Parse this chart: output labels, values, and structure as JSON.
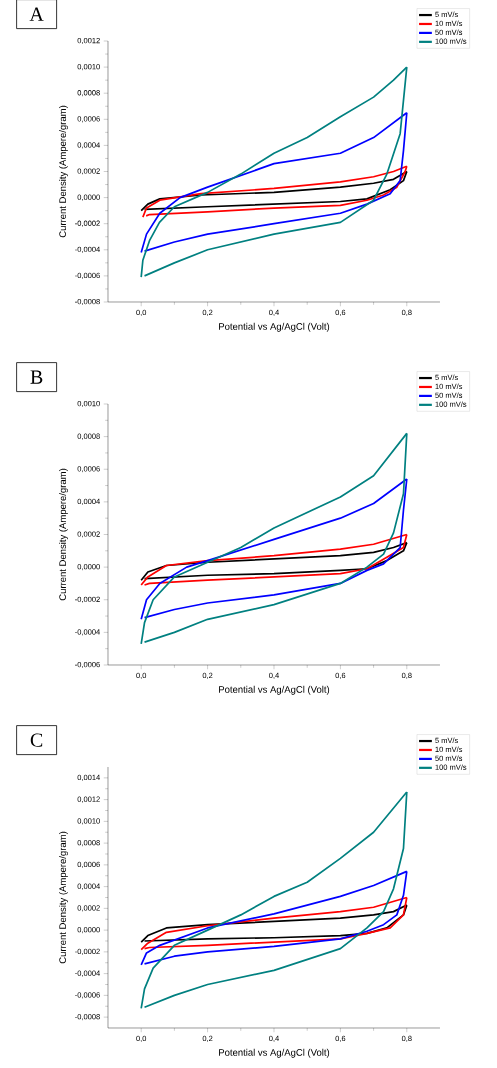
{
  "chart_data": [
    {
      "type": "line",
      "title": "A",
      "xlabel": "Potential vs Ag/AgCl (Volt)",
      "ylabel": "Current Density (Ampere/gram)",
      "legend": "top right",
      "xlim": [
        -0.1,
        0.9
      ],
      "xticks": [
        {
          "value": 0,
          "label": "0,0"
        },
        {
          "value": 0.2,
          "label": "0,2"
        },
        {
          "value": 0.4,
          "label": "0,4"
        },
        {
          "value": 0.6,
          "label": "0,6"
        },
        {
          "value": 0.8,
          "label": "0,8"
        }
      ],
      "ylim": [
        -0.0008,
        0.0012
      ],
      "yticks": [
        {
          "value": -0.0008,
          "label": "-0,0008"
        },
        {
          "value": -0.0006,
          "label": "-0,0006"
        },
        {
          "value": -0.0004,
          "label": "-0,0004"
        },
        {
          "value": -0.0002,
          "label": "-0,0002"
        },
        {
          "value": 0,
          "label": "0,0000"
        },
        {
          "value": 0.0002,
          "label": "0,0002"
        },
        {
          "value": 0.0004,
          "label": "0,0004"
        },
        {
          "value": 0.0006,
          "label": "0,0006"
        },
        {
          "value": 0.0008,
          "label": "0,0008"
        },
        {
          "value": 0.001,
          "label": "0,0010"
        },
        {
          "value": 0.0012,
          "label": "0,0012"
        }
      ],
      "series": [
        {
          "name": "5 mV/s",
          "color": "#000000",
          "x": [
            0,
            0.02,
            0.056,
            0.18,
            0.4,
            0.6,
            0.7,
            0.76,
            0.8
          ],
          "values": [
            -0.0001,
            -5e-05,
            -1e-05,
            2e-05,
            4e-05,
            8e-05,
            0.00011,
            0.00014,
            0.0002
          ]
        },
        {
          "color": "#000000",
          "x": [
            0.01,
            0.2,
            0.4,
            0.6,
            0.68,
            0.75,
            0.79,
            0.8
          ],
          "values": [
            -9e-05,
            -7e-05,
            -5e-05,
            -3e-05,
            -1e-05,
            6e-05,
            0.00013,
            0.0002
          ]
        },
        {
          "name": "10 mV/s",
          "color": "#ff0000",
          "x": [
            0.005,
            0.016,
            0.056,
            0.18,
            0.4,
            0.6,
            0.7,
            0.76,
            0.8
          ],
          "values": [
            -0.00015,
            -8e-05,
            -2e-05,
            3e-05,
            7e-05,
            0.00012,
            0.00016,
            0.0002,
            0.00024
          ]
        },
        {
          "color": "#ff0000",
          "x": [
            0.015,
            0.025,
            0.2,
            0.4,
            0.6,
            0.68,
            0.73,
            0.77,
            0.795,
            0.8
          ],
          "values": [
            -0.00014,
            -0.00013,
            -0.00011,
            -8e-05,
            -6e-05,
            -2e-05,
            2e-05,
            8e-05,
            0.0002,
            0.00024
          ]
        },
        {
          "name": "50 mV/s",
          "color": "#0000ff",
          "x": [
            0,
            0.016,
            0.056,
            0.117,
            0.2,
            0.4,
            0.6,
            0.7,
            0.8
          ],
          "values": [
            -0.00042,
            -0.00028,
            -0.00012,
            0.0,
            8e-05,
            0.00026,
            0.00034,
            0.00046,
            0.00065
          ]
        },
        {
          "color": "#0000ff",
          "x": [
            0.01,
            0.1,
            0.2,
            0.4,
            0.6,
            0.68,
            0.75,
            0.78,
            0.79,
            0.8
          ],
          "values": [
            -0.00041,
            -0.00034,
            -0.00028,
            -0.0002,
            -0.00012,
            -5e-05,
            3e-05,
            0.00013,
            0.00036,
            0.00065
          ]
        },
        {
          "name": "100 mV/s",
          "color": "#008080",
          "x": [
            0,
            0.005,
            0.025,
            0.055,
            0.1,
            0.2,
            0.3,
            0.4,
            0.5,
            0.6,
            0.7,
            0.76,
            0.8
          ],
          "values": [
            -0.00061,
            -0.00048,
            -0.00033,
            -0.00019,
            -7e-05,
            4e-05,
            0.00018,
            0.00034,
            0.00046,
            0.00062,
            0.00077,
            0.0009,
            0.001
          ]
        },
        {
          "color": "#008080",
          "x": [
            0.01,
            0.1,
            0.2,
            0.4,
            0.6,
            0.7,
            0.74,
            0.78,
            0.8
          ],
          "values": [
            -0.0006,
            -0.0005,
            -0.0004,
            -0.00028,
            -0.00019,
            -2e-05,
            0.00018,
            0.00049,
            0.001
          ]
        }
      ]
    },
    {
      "type": "line",
      "title": "B",
      "xlabel": "Potential vs Ag/AgCl (Volt)",
      "ylabel": "Current Density (Ampere/gram)",
      "legend": "top right",
      "xlim": [
        -0.1,
        0.9
      ],
      "xticks": [
        {
          "value": 0,
          "label": "0,0"
        },
        {
          "value": 0.2,
          "label": "0,2"
        },
        {
          "value": 0.4,
          "label": "0,4"
        },
        {
          "value": 0.6,
          "label": "0,6"
        },
        {
          "value": 0.8,
          "label": "0,8"
        }
      ],
      "ylim": [
        -0.0006,
        0.001
      ],
      "yticks": [
        {
          "value": -0.0006,
          "label": "-0,0006"
        },
        {
          "value": -0.0004,
          "label": "-0,0004"
        },
        {
          "value": -0.0002,
          "label": "-0,0002"
        },
        {
          "value": 0,
          "label": "0,0000"
        },
        {
          "value": 0.0002,
          "label": "0,0002"
        },
        {
          "value": 0.0004,
          "label": "0,0004"
        },
        {
          "value": 0.0006,
          "label": "0,0006"
        },
        {
          "value": 0.0008,
          "label": "0,0008"
        },
        {
          "value": 0.001,
          "label": "0,0010"
        }
      ],
      "series": [
        {
          "name": "5 mV/s",
          "color": "#000000",
          "x": [
            0,
            0.02,
            0.076,
            0.2,
            0.4,
            0.6,
            0.7,
            0.76,
            0.8
          ],
          "values": [
            -8e-05,
            -3e-05,
            1e-05,
            3e-05,
            5e-05,
            7e-05,
            9e-05,
            0.00012,
            0.00015
          ]
        },
        {
          "color": "#000000",
          "x": [
            0.01,
            0.2,
            0.4,
            0.6,
            0.68,
            0.74,
            0.79,
            0.8
          ],
          "values": [
            -7e-05,
            -5e-05,
            -4e-05,
            -2e-05,
            -1e-05,
            4e-05,
            0.0001,
            0.00015
          ]
        },
        {
          "name": "10 mV/s",
          "color": "#ff0000",
          "x": [
            0,
            0.02,
            0.076,
            0.2,
            0.4,
            0.6,
            0.7,
            0.8
          ],
          "values": [
            -0.00011,
            -6e-05,
            1e-05,
            4e-05,
            7e-05,
            0.00011,
            0.00014,
            0.0002
          ]
        },
        {
          "color": "#ff0000",
          "x": [
            0.01,
            0.025,
            0.2,
            0.4,
            0.6,
            0.68,
            0.74,
            0.79,
            0.8
          ],
          "values": [
            -0.00011,
            -0.0001,
            -8e-05,
            -6e-05,
            -4e-05,
            -1e-05,
            6e-05,
            0.00012,
            0.0002
          ]
        },
        {
          "name": "50 mV/s",
          "color": "#0000ff",
          "x": [
            0,
            0.016,
            0.056,
            0.137,
            0.2,
            0.4,
            0.6,
            0.7,
            0.8
          ],
          "values": [
            -0.00032,
            -0.0002,
            -0.0001,
            0.0,
            4e-05,
            0.00017,
            0.0003,
            0.00039,
            0.00054
          ]
        },
        {
          "color": "#0000ff",
          "x": [
            0.01,
            0.1,
            0.2,
            0.4,
            0.6,
            0.68,
            0.73,
            0.78,
            0.79,
            0.8
          ],
          "values": [
            -0.00031,
            -0.00026,
            -0.00022,
            -0.00017,
            -0.0001,
            -2e-05,
            2e-05,
            0.00012,
            0.00035,
            0.00054
          ]
        },
        {
          "name": "100 mV/s",
          "color": "#008080",
          "x": [
            0,
            0.01,
            0.036,
            0.1,
            0.2,
            0.3,
            0.4,
            0.6,
            0.7,
            0.8
          ],
          "values": [
            -0.00047,
            -0.00034,
            -0.0002,
            -6e-05,
            3e-05,
            0.00012,
            0.00024,
            0.00043,
            0.00056,
            0.00082
          ]
        },
        {
          "color": "#008080",
          "x": [
            0.01,
            0.1,
            0.2,
            0.4,
            0.6,
            0.68,
            0.73,
            0.76,
            0.79,
            0.8
          ],
          "values": [
            -0.00046,
            -0.0004,
            -0.00032,
            -0.00023,
            -0.0001,
            0.0,
            8e-05,
            0.00021,
            0.00045,
            0.00082
          ]
        }
      ]
    },
    {
      "type": "line",
      "title": "C",
      "xlabel": "Potential vs Ag/AgCl (Volt)",
      "ylabel": "Current Density (Ampere/gram)",
      "legend": "top right",
      "xlim": [
        -0.1,
        0.9
      ],
      "xticks": [
        {
          "value": 0,
          "label": "0,0"
        },
        {
          "value": 0.2,
          "label": "0,2"
        },
        {
          "value": 0.4,
          "label": "0,4"
        },
        {
          "value": 0.6,
          "label": "0,6"
        },
        {
          "value": 0.8,
          "label": "0,8"
        }
      ],
      "ylim": [
        -0.0009,
        0.0015
      ],
      "yticks": [
        {
          "value": -0.0008,
          "label": "-0,0008"
        },
        {
          "value": -0.0006,
          "label": "-0,0006"
        },
        {
          "value": -0.0004,
          "label": "-0,0004"
        },
        {
          "value": -0.0002,
          "label": "-0,0002"
        },
        {
          "value": 0,
          "label": "0,0000"
        },
        {
          "value": 0.0002,
          "label": "0,0002"
        },
        {
          "value": 0.0004,
          "label": "0,0004"
        },
        {
          "value": 0.0006,
          "label": "0,0006"
        },
        {
          "value": 0.0008,
          "label": "0,0008"
        },
        {
          "value": 0.001,
          "label": "0,0010"
        },
        {
          "value": 0.0012,
          "label": "0,0012"
        },
        {
          "value": 0.0014,
          "label": "0,0014"
        }
      ],
      "series": [
        {
          "name": "5 mV/s",
          "color": "#000000",
          "x": [
            0,
            0.02,
            0.076,
            0.2,
            0.4,
            0.6,
            0.7,
            0.76,
            0.8
          ],
          "values": [
            -0.00011,
            -5e-05,
            2e-05,
            5e-05,
            8e-05,
            0.00011,
            0.00014,
            0.00017,
            0.00023
          ]
        },
        {
          "color": "#000000",
          "x": [
            0.01,
            0.2,
            0.4,
            0.6,
            0.68,
            0.74,
            0.79,
            0.8
          ],
          "values": [
            -0.0001,
            -8e-05,
            -7e-05,
            -5e-05,
            -3e-05,
            2e-05,
            0.00014,
            0.00023
          ]
        },
        {
          "name": "10 mV/s",
          "color": "#ff0000",
          "x": [
            0,
            0.02,
            0.076,
            0.2,
            0.4,
            0.6,
            0.7,
            0.8
          ],
          "values": [
            -0.00018,
            -0.00012,
            -2e-05,
            4e-05,
            0.00011,
            0.00017,
            0.00021,
            0.0003
          ]
        },
        {
          "color": "#ff0000",
          "x": [
            0.01,
            0.025,
            0.2,
            0.4,
            0.6,
            0.68,
            0.75,
            0.79,
            0.8
          ],
          "values": [
            -0.00017,
            -0.00016,
            -0.00014,
            -0.00011,
            -8e-05,
            -3e-05,
            2e-05,
            0.00014,
            0.0003
          ]
        },
        {
          "name": "50 mV/s",
          "color": "#0000ff",
          "x": [
            0,
            0.016,
            0.056,
            0.2,
            0.4,
            0.6,
            0.7,
            0.8
          ],
          "values": [
            -0.00032,
            -0.00021,
            -0.00014,
            2e-05,
            0.00015,
            0.00031,
            0.00041,
            0.00054
          ]
        },
        {
          "color": "#0000ff",
          "x": [
            0.01,
            0.1,
            0.2,
            0.4,
            0.6,
            0.68,
            0.73,
            0.77,
            0.79,
            0.8
          ],
          "values": [
            -0.00031,
            -0.00024,
            -0.0002,
            -0.00015,
            -8e-05,
            -1e-05,
            5e-05,
            0.00014,
            0.00032,
            0.00054
          ]
        },
        {
          "name": "100 mV/s",
          "color": "#008080",
          "x": [
            0,
            0.01,
            0.036,
            0.1,
            0.2,
            0.3,
            0.4,
            0.5,
            0.6,
            0.7,
            0.8
          ],
          "values": [
            -0.00072,
            -0.00054,
            -0.00035,
            -0.00014,
            0.0,
            0.00014,
            0.00031,
            0.00044,
            0.00066,
            0.0009,
            0.00127
          ]
        },
        {
          "color": "#008080",
          "x": [
            0.01,
            0.1,
            0.2,
            0.4,
            0.6,
            0.68,
            0.73,
            0.76,
            0.79,
            0.8
          ],
          "values": [
            -0.00071,
            -0.0006,
            -0.0005,
            -0.00037,
            -0.00017,
            2e-05,
            0.00017,
            0.00038,
            0.00075,
            0.00127
          ]
        }
      ]
    }
  ]
}
